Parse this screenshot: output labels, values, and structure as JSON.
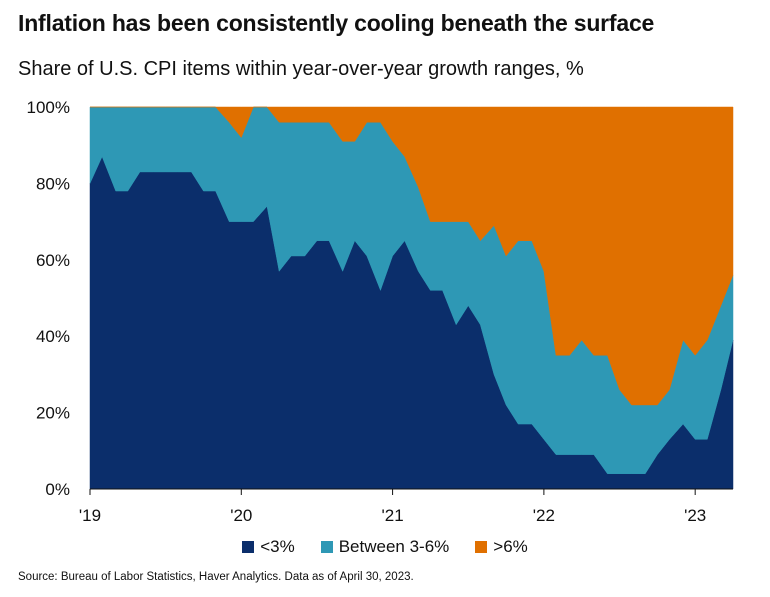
{
  "chart_data": {
    "type": "area",
    "title": "Inflation has been consistently cooling beneath the surface",
    "subtitle": "Share of U.S. CPI items within year-over-year growth ranges, %",
    "xlabel": "",
    "ylabel": "",
    "ylim": [
      0,
      100
    ],
    "yticks": [
      "0%",
      "20%",
      "40%",
      "60%",
      "80%",
      "100%"
    ],
    "xlim": [
      2019.0,
      2023.25
    ],
    "xticks": [
      {
        "value": 2019,
        "label": "'19"
      },
      {
        "value": 2020,
        "label": "'20"
      },
      {
        "value": 2021,
        "label": "'21"
      },
      {
        "value": 2022,
        "label": "'22"
      },
      {
        "value": 2023,
        "label": "'23"
      }
    ],
    "stacked": true,
    "grid": false,
    "legend_position": "bottom",
    "series": [
      {
        "name": "<3%",
        "color": "#0b2e6b",
        "points": [
          [
            2019.0,
            80
          ],
          [
            2019.08,
            87
          ],
          [
            2019.17,
            78
          ],
          [
            2019.25,
            78
          ],
          [
            2019.33,
            83
          ],
          [
            2019.42,
            83
          ],
          [
            2019.5,
            83
          ],
          [
            2019.58,
            83
          ],
          [
            2019.67,
            83
          ],
          [
            2019.75,
            78
          ],
          [
            2019.83,
            78
          ],
          [
            2019.92,
            70
          ],
          [
            2020.0,
            70
          ],
          [
            2020.08,
            70
          ],
          [
            2020.17,
            74
          ],
          [
            2020.25,
            57
          ],
          [
            2020.33,
            61
          ],
          [
            2020.42,
            61
          ],
          [
            2020.5,
            65
          ],
          [
            2020.58,
            65
          ],
          [
            2020.67,
            57
          ],
          [
            2020.75,
            65
          ],
          [
            2020.83,
            61
          ],
          [
            2020.92,
            52
          ],
          [
            2021.0,
            61
          ],
          [
            2021.08,
            65
          ],
          [
            2021.17,
            57
          ],
          [
            2021.25,
            52
          ],
          [
            2021.33,
            52
          ],
          [
            2021.42,
            43
          ],
          [
            2021.5,
            48
          ],
          [
            2021.58,
            43
          ],
          [
            2021.67,
            30
          ],
          [
            2021.75,
            22
          ],
          [
            2021.83,
            17
          ],
          [
            2021.92,
            17
          ],
          [
            2022.0,
            13
          ],
          [
            2022.08,
            9
          ],
          [
            2022.17,
            9
          ],
          [
            2022.25,
            9
          ],
          [
            2022.33,
            9
          ],
          [
            2022.42,
            4
          ],
          [
            2022.5,
            4
          ],
          [
            2022.58,
            4
          ],
          [
            2022.67,
            4
          ],
          [
            2022.75,
            9
          ],
          [
            2022.83,
            13
          ],
          [
            2022.92,
            17
          ],
          [
            2023.0,
            13
          ],
          [
            2023.08,
            13
          ],
          [
            2023.17,
            26
          ],
          [
            2023.25,
            39
          ]
        ]
      },
      {
        "name": "Between 3-6%",
        "color": "#2e98b5",
        "points": [
          [
            2019.0,
            20
          ],
          [
            2019.08,
            13
          ],
          [
            2019.17,
            22
          ],
          [
            2019.25,
            22
          ],
          [
            2019.33,
            17
          ],
          [
            2019.42,
            17
          ],
          [
            2019.5,
            17
          ],
          [
            2019.58,
            17
          ],
          [
            2019.67,
            17
          ],
          [
            2019.75,
            22
          ],
          [
            2019.83,
            22
          ],
          [
            2019.92,
            26
          ],
          [
            2020.0,
            22
          ],
          [
            2020.08,
            30
          ],
          [
            2020.17,
            26
          ],
          [
            2020.25,
            39
          ],
          [
            2020.33,
            35
          ],
          [
            2020.42,
            35
          ],
          [
            2020.5,
            31
          ],
          [
            2020.58,
            31
          ],
          [
            2020.67,
            34
          ],
          [
            2020.75,
            26
          ],
          [
            2020.83,
            35
          ],
          [
            2020.92,
            44
          ],
          [
            2021.0,
            30
          ],
          [
            2021.08,
            22
          ],
          [
            2021.17,
            22
          ],
          [
            2021.25,
            18
          ],
          [
            2021.33,
            18
          ],
          [
            2021.42,
            27
          ],
          [
            2021.5,
            22
          ],
          [
            2021.58,
            22
          ],
          [
            2021.67,
            39
          ],
          [
            2021.75,
            39
          ],
          [
            2021.83,
            48
          ],
          [
            2021.92,
            48
          ],
          [
            2022.0,
            44
          ],
          [
            2022.08,
            26
          ],
          [
            2022.17,
            26
          ],
          [
            2022.25,
            30
          ],
          [
            2022.33,
            26
          ],
          [
            2022.42,
            31
          ],
          [
            2022.5,
            22
          ],
          [
            2022.58,
            18
          ],
          [
            2022.67,
            18
          ],
          [
            2022.75,
            13
          ],
          [
            2022.83,
            13
          ],
          [
            2022.92,
            22
          ],
          [
            2023.0,
            22
          ],
          [
            2023.08,
            26
          ],
          [
            2023.17,
            22
          ],
          [
            2023.25,
            17
          ]
        ]
      },
      {
        "name": ">6%",
        "color": "#e07000",
        "points": [
          [
            2019.0,
            0
          ],
          [
            2019.08,
            0
          ],
          [
            2019.17,
            0
          ],
          [
            2019.25,
            0
          ],
          [
            2019.33,
            0
          ],
          [
            2019.42,
            0
          ],
          [
            2019.5,
            0
          ],
          [
            2019.58,
            0
          ],
          [
            2019.67,
            0
          ],
          [
            2019.75,
            0
          ],
          [
            2019.83,
            0
          ],
          [
            2019.92,
            4
          ],
          [
            2020.0,
            8
          ],
          [
            2020.08,
            0
          ],
          [
            2020.17,
            0
          ],
          [
            2020.25,
            4
          ],
          [
            2020.33,
            4
          ],
          [
            2020.42,
            4
          ],
          [
            2020.5,
            4
          ],
          [
            2020.58,
            4
          ],
          [
            2020.67,
            9
          ],
          [
            2020.75,
            9
          ],
          [
            2020.83,
            4
          ],
          [
            2020.92,
            4
          ],
          [
            2021.0,
            9
          ],
          [
            2021.08,
            13
          ],
          [
            2021.17,
            21
          ],
          [
            2021.25,
            30
          ],
          [
            2021.33,
            30
          ],
          [
            2021.42,
            30
          ],
          [
            2021.5,
            30
          ],
          [
            2021.58,
            35
          ],
          [
            2021.67,
            31
          ],
          [
            2021.75,
            39
          ],
          [
            2021.83,
            35
          ],
          [
            2021.92,
            35
          ],
          [
            2022.0,
            43
          ],
          [
            2022.08,
            65
          ],
          [
            2022.17,
            65
          ],
          [
            2022.25,
            61
          ],
          [
            2022.33,
            65
          ],
          [
            2022.42,
            65
          ],
          [
            2022.5,
            74
          ],
          [
            2022.58,
            78
          ],
          [
            2022.67,
            78
          ],
          [
            2022.75,
            78
          ],
          [
            2022.83,
            74
          ],
          [
            2022.92,
            61
          ],
          [
            2023.0,
            65
          ],
          [
            2023.08,
            61
          ],
          [
            2023.17,
            52
          ],
          [
            2023.25,
            44
          ]
        ]
      }
    ]
  },
  "legend": [
    {
      "label": "<3%",
      "color": "#0b2e6b"
    },
    {
      "label": "Between 3-6%",
      "color": "#2e98b5"
    },
    {
      "label": ">6%",
      "color": "#e07000"
    }
  ],
  "source": "Source: Bureau of Labor Statistics, Haver Analytics. Data as of April 30, 2023."
}
